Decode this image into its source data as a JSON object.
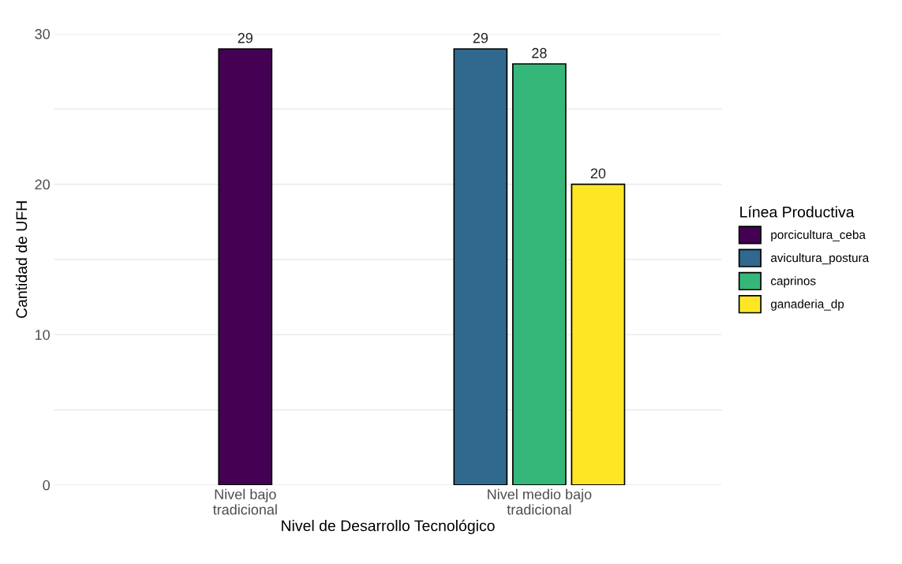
{
  "chart_data": {
    "type": "bar",
    "xlabel": "Nivel de Desarrollo Tecnológico",
    "ylabel": "Cantidad de UFH",
    "legend_title": "Línea Productiva",
    "categories": [
      "Nivel bajo\ntradicional",
      "Nivel medio bajo\ntradicional"
    ],
    "series": [
      {
        "name": "porcicultura_ceba",
        "color": "#440154",
        "values": [
          29,
          null
        ]
      },
      {
        "name": "avicultura_postura",
        "color": "#31688e",
        "values": [
          null,
          29
        ]
      },
      {
        "name": "caprinos",
        "color": "#35b779",
        "values": [
          null,
          28
        ]
      },
      {
        "name": "ganaderia_dp",
        "color": "#fde725",
        "values": [
          null,
          20
        ]
      }
    ],
    "yticks": [
      0,
      {
        "value": 5,
        "label": null
      },
      10,
      {
        "value": 15,
        "label": null
      },
      20,
      {
        "value": 25,
        "label": null
      },
      30
    ],
    "ylim": [
      0,
      30
    ],
    "grid": "y",
    "legend": "right",
    "data_labels": true
  }
}
